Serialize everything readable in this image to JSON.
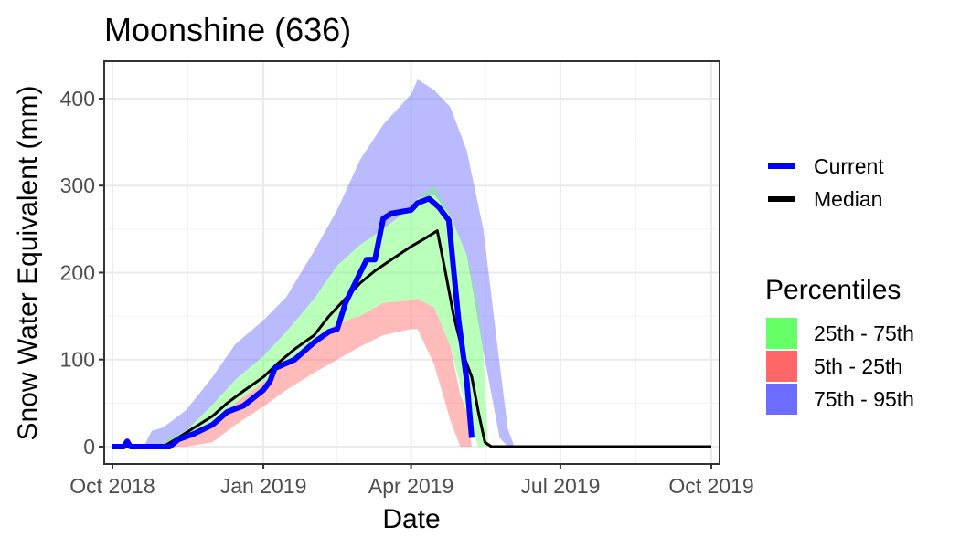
{
  "chart_data": {
    "type": "area",
    "title": "Moonshine (636)",
    "xlabel": "Date",
    "ylabel": "Snow Water Equivalent (mm)",
    "xlim": [
      "2018-09-26",
      "2019-10-06"
    ],
    "ylim": [
      -20,
      443
    ],
    "x_ticks": [
      {
        "date": "2018-10-01",
        "label": "Oct 2018"
      },
      {
        "date": "2019-01-01",
        "label": "Jan 2019"
      },
      {
        "date": "2019-04-01",
        "label": "Apr 2019"
      },
      {
        "date": "2019-07-01",
        "label": "Jul 2019"
      },
      {
        "date": "2019-10-01",
        "label": "Oct 2019"
      }
    ],
    "y_ticks": [
      0,
      100,
      200,
      300,
      400
    ],
    "grid": true,
    "bands": [
      {
        "name": "75th - 95th",
        "color": "#7575ff",
        "opacity": 0.5,
        "points": [
          [
            "2018-10-01",
            0,
            0
          ],
          [
            "2018-10-20",
            0,
            0
          ],
          [
            "2018-10-25",
            0,
            18
          ],
          [
            "2018-11-01",
            0,
            22
          ],
          [
            "2018-11-15",
            18,
            42
          ],
          [
            "2018-12-01",
            48,
            80
          ],
          [
            "2018-12-15",
            77,
            118
          ],
          [
            "2019-01-01",
            104,
            145
          ],
          [
            "2019-01-15",
            132,
            172
          ],
          [
            "2019-02-01",
            170,
            225
          ],
          [
            "2019-02-15",
            208,
            272
          ],
          [
            "2019-03-01",
            232,
            330
          ],
          [
            "2019-03-15",
            250,
            370
          ],
          [
            "2019-04-01",
            275,
            405
          ],
          [
            "2019-04-05",
            285,
            422
          ],
          [
            "2019-04-15",
            290,
            410
          ],
          [
            "2019-04-25",
            265,
            390
          ],
          [
            "2019-05-05",
            220,
            340
          ],
          [
            "2019-05-15",
            110,
            250
          ],
          [
            "2019-05-25",
            10,
            95
          ],
          [
            "2019-05-30",
            0,
            20
          ],
          [
            "2019-06-03",
            0,
            0
          ],
          [
            "2019-10-01",
            0,
            0
          ]
        ]
      },
      {
        "name": "25th - 75th",
        "color": "#66ff66",
        "opacity": 0.45,
        "points": [
          [
            "2018-10-01",
            0,
            0
          ],
          [
            "2018-10-30",
            0,
            0
          ],
          [
            "2018-11-05",
            0,
            10
          ],
          [
            "2018-11-15",
            8,
            18
          ],
          [
            "2018-12-01",
            28,
            48
          ],
          [
            "2018-12-15",
            50,
            77
          ],
          [
            "2019-01-01",
            74,
            104
          ],
          [
            "2019-01-15",
            95,
            132
          ],
          [
            "2019-02-01",
            124,
            170
          ],
          [
            "2019-02-15",
            142,
            208
          ],
          [
            "2019-03-01",
            150,
            232
          ],
          [
            "2019-03-15",
            165,
            250
          ],
          [
            "2019-04-01",
            168,
            275
          ],
          [
            "2019-04-05",
            170,
            285
          ],
          [
            "2019-04-15",
            160,
            300
          ],
          [
            "2019-04-25",
            115,
            265
          ],
          [
            "2019-05-05",
            40,
            220
          ],
          [
            "2019-05-12",
            0,
            160
          ],
          [
            "2019-05-15",
            0,
            110
          ],
          [
            "2019-05-18",
            0,
            0
          ],
          [
            "2019-10-01",
            0,
            0
          ]
        ]
      },
      {
        "name": "5th - 25th",
        "color": "#ff6666",
        "opacity": 0.45,
        "points": [
          [
            "2018-10-01",
            0,
            0
          ],
          [
            "2018-11-05",
            0,
            0
          ],
          [
            "2018-11-15",
            0,
            8
          ],
          [
            "2018-12-01",
            5,
            28
          ],
          [
            "2018-12-15",
            25,
            50
          ],
          [
            "2019-01-01",
            46,
            74
          ],
          [
            "2019-01-15",
            65,
            95
          ],
          [
            "2019-02-01",
            85,
            124
          ],
          [
            "2019-02-15",
            100,
            142
          ],
          [
            "2019-03-01",
            115,
            150
          ],
          [
            "2019-03-15",
            128,
            165
          ],
          [
            "2019-04-01",
            135,
            168
          ],
          [
            "2019-04-05",
            135,
            170
          ],
          [
            "2019-04-15",
            95,
            160
          ],
          [
            "2019-04-25",
            30,
            115
          ],
          [
            "2019-05-01",
            0,
            60
          ],
          [
            "2019-05-05",
            0,
            40
          ],
          [
            "2019-05-08",
            0,
            0
          ],
          [
            "2019-10-01",
            0,
            0
          ]
        ]
      }
    ],
    "series": [
      {
        "name": "Median",
        "color": "#000000",
        "width": 3,
        "points": [
          [
            "2018-10-01",
            0
          ],
          [
            "2018-11-01",
            0
          ],
          [
            "2018-11-10",
            10
          ],
          [
            "2018-11-20",
            22
          ],
          [
            "2018-12-01",
            35
          ],
          [
            "2018-12-10",
            50
          ],
          [
            "2018-12-20",
            64
          ],
          [
            "2019-01-01",
            80
          ],
          [
            "2019-01-10",
            96
          ],
          [
            "2019-01-20",
            112
          ],
          [
            "2019-02-01",
            128
          ],
          [
            "2019-02-10",
            150
          ],
          [
            "2019-02-20",
            170
          ],
          [
            "2019-03-01",
            188
          ],
          [
            "2019-03-10",
            202
          ],
          [
            "2019-03-20",
            215
          ],
          [
            "2019-04-01",
            230
          ],
          [
            "2019-04-10",
            240
          ],
          [
            "2019-04-17",
            248
          ],
          [
            "2019-04-22",
            200
          ],
          [
            "2019-04-27",
            150
          ],
          [
            "2019-05-03",
            105
          ],
          [
            "2019-05-08",
            80
          ],
          [
            "2019-05-12",
            40
          ],
          [
            "2019-05-16",
            5
          ],
          [
            "2019-05-20",
            0
          ],
          [
            "2019-10-01",
            0
          ]
        ]
      },
      {
        "name": "Current",
        "color": "#0000ff",
        "width": 6,
        "points": [
          [
            "2018-10-01",
            0
          ],
          [
            "2018-10-08",
            0
          ],
          [
            "2018-10-10",
            6
          ],
          [
            "2018-10-12",
            0
          ],
          [
            "2018-11-05",
            0
          ],
          [
            "2018-11-10",
            8
          ],
          [
            "2018-11-20",
            15
          ],
          [
            "2018-12-01",
            25
          ],
          [
            "2018-12-10",
            40
          ],
          [
            "2018-12-20",
            47
          ],
          [
            "2019-01-01",
            65
          ],
          [
            "2019-01-05",
            75
          ],
          [
            "2019-01-08",
            90
          ],
          [
            "2019-01-20",
            100
          ],
          [
            "2019-02-01",
            120
          ],
          [
            "2019-02-10",
            132
          ],
          [
            "2019-02-15",
            135
          ],
          [
            "2019-02-20",
            165
          ],
          [
            "2019-03-01",
            200
          ],
          [
            "2019-03-05",
            215
          ],
          [
            "2019-03-10",
            215
          ],
          [
            "2019-03-15",
            262
          ],
          [
            "2019-03-20",
            268
          ],
          [
            "2019-04-01",
            272
          ],
          [
            "2019-04-05",
            280
          ],
          [
            "2019-04-12",
            285
          ],
          [
            "2019-04-18",
            275
          ],
          [
            "2019-04-24",
            260
          ],
          [
            "2019-04-30",
            145
          ],
          [
            "2019-05-05",
            75
          ],
          [
            "2019-05-08",
            10
          ]
        ]
      }
    ],
    "legend": {
      "lines": [
        {
          "label": "Current",
          "color": "#0000ff"
        },
        {
          "label": "Median",
          "color": "#000000"
        }
      ],
      "title": "Percentiles",
      "fills": [
        {
          "label": "25th - 75th",
          "color": "#66ff66"
        },
        {
          "label": "5th - 25th",
          "color": "#ff6666"
        },
        {
          "label": "75th - 95th",
          "color": "#6c6cff"
        }
      ],
      "placement": "right"
    }
  }
}
